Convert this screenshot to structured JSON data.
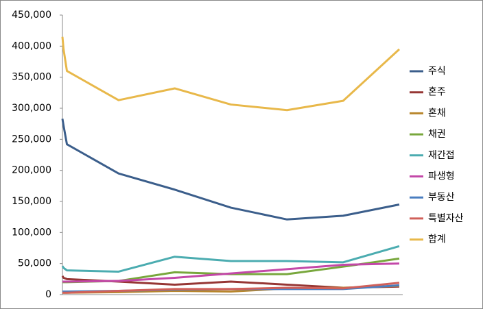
{
  "chart_data": {
    "type": "line",
    "x": [
      0,
      0.02,
      0.08,
      1,
      2,
      3,
      4,
      5,
      6
    ],
    "xlim": [
      0,
      6
    ],
    "ylim": [
      0,
      450000
    ],
    "yticks": [
      0,
      {
        "value": 50000,
        "label": "50,000"
      },
      {
        "value": 100000,
        "label": "100,000"
      },
      {
        "value": 150000,
        "label": "150,000"
      },
      {
        "value": 200000,
        "label": "200,000"
      },
      {
        "value": 250000,
        "label": "250,000"
      },
      {
        "value": 300000,
        "label": "300,000"
      },
      {
        "value": 350000,
        "label": "350,000"
      },
      {
        "value": 400000,
        "label": "400,000"
      },
      {
        "value": 450000,
        "label": "450,000"
      }
    ],
    "grid": false,
    "legend": "right",
    "series": [
      {
        "name": "주식",
        "color": "#3b5e8b",
        "values": [
          283000,
          272000,
          242000,
          195000,
          169000,
          140000,
          121000,
          127000,
          145000
        ]
      },
      {
        "name": "혼주",
        "color": "#963634",
        "values": [
          30000,
          27000,
          25000,
          21000,
          16000,
          21000,
          16000,
          11000,
          13000
        ]
      },
      {
        "name": "혼채",
        "color": "#b8862c",
        "values": [
          3000,
          3000,
          3000,
          4000,
          6000,
          5000,
          10000,
          11000,
          14000
        ]
      },
      {
        "name": "채권",
        "color": "#78a73c",
        "values": [
          20000,
          20000,
          20000,
          22000,
          36000,
          33000,
          33000,
          45000,
          58000
        ]
      },
      {
        "name": "재간접",
        "color": "#4bacb0",
        "values": [
          46000,
          43000,
          39000,
          37000,
          61000,
          54000,
          54000,
          52000,
          78000
        ]
      },
      {
        "name": "파생형",
        "color": "#c348a8",
        "values": [
          21000,
          21000,
          21000,
          22000,
          27000,
          34000,
          41000,
          48000,
          50000
        ]
      },
      {
        "name": "부동산",
        "color": "#4a7ec0",
        "values": [
          5000,
          5000,
          5000,
          6000,
          8000,
          9000,
          9000,
          9000,
          15000
        ]
      },
      {
        "name": "특별자산",
        "color": "#d0605a",
        "values": [
          3000,
          3000,
          3000,
          6000,
          9000,
          9000,
          11000,
          10000,
          19000
        ]
      },
      {
        "name": "합계",
        "color": "#e8b84a",
        "values": [
          415000,
          395000,
          360000,
          313000,
          332000,
          306000,
          297000,
          312000,
          395000
        ]
      }
    ]
  }
}
